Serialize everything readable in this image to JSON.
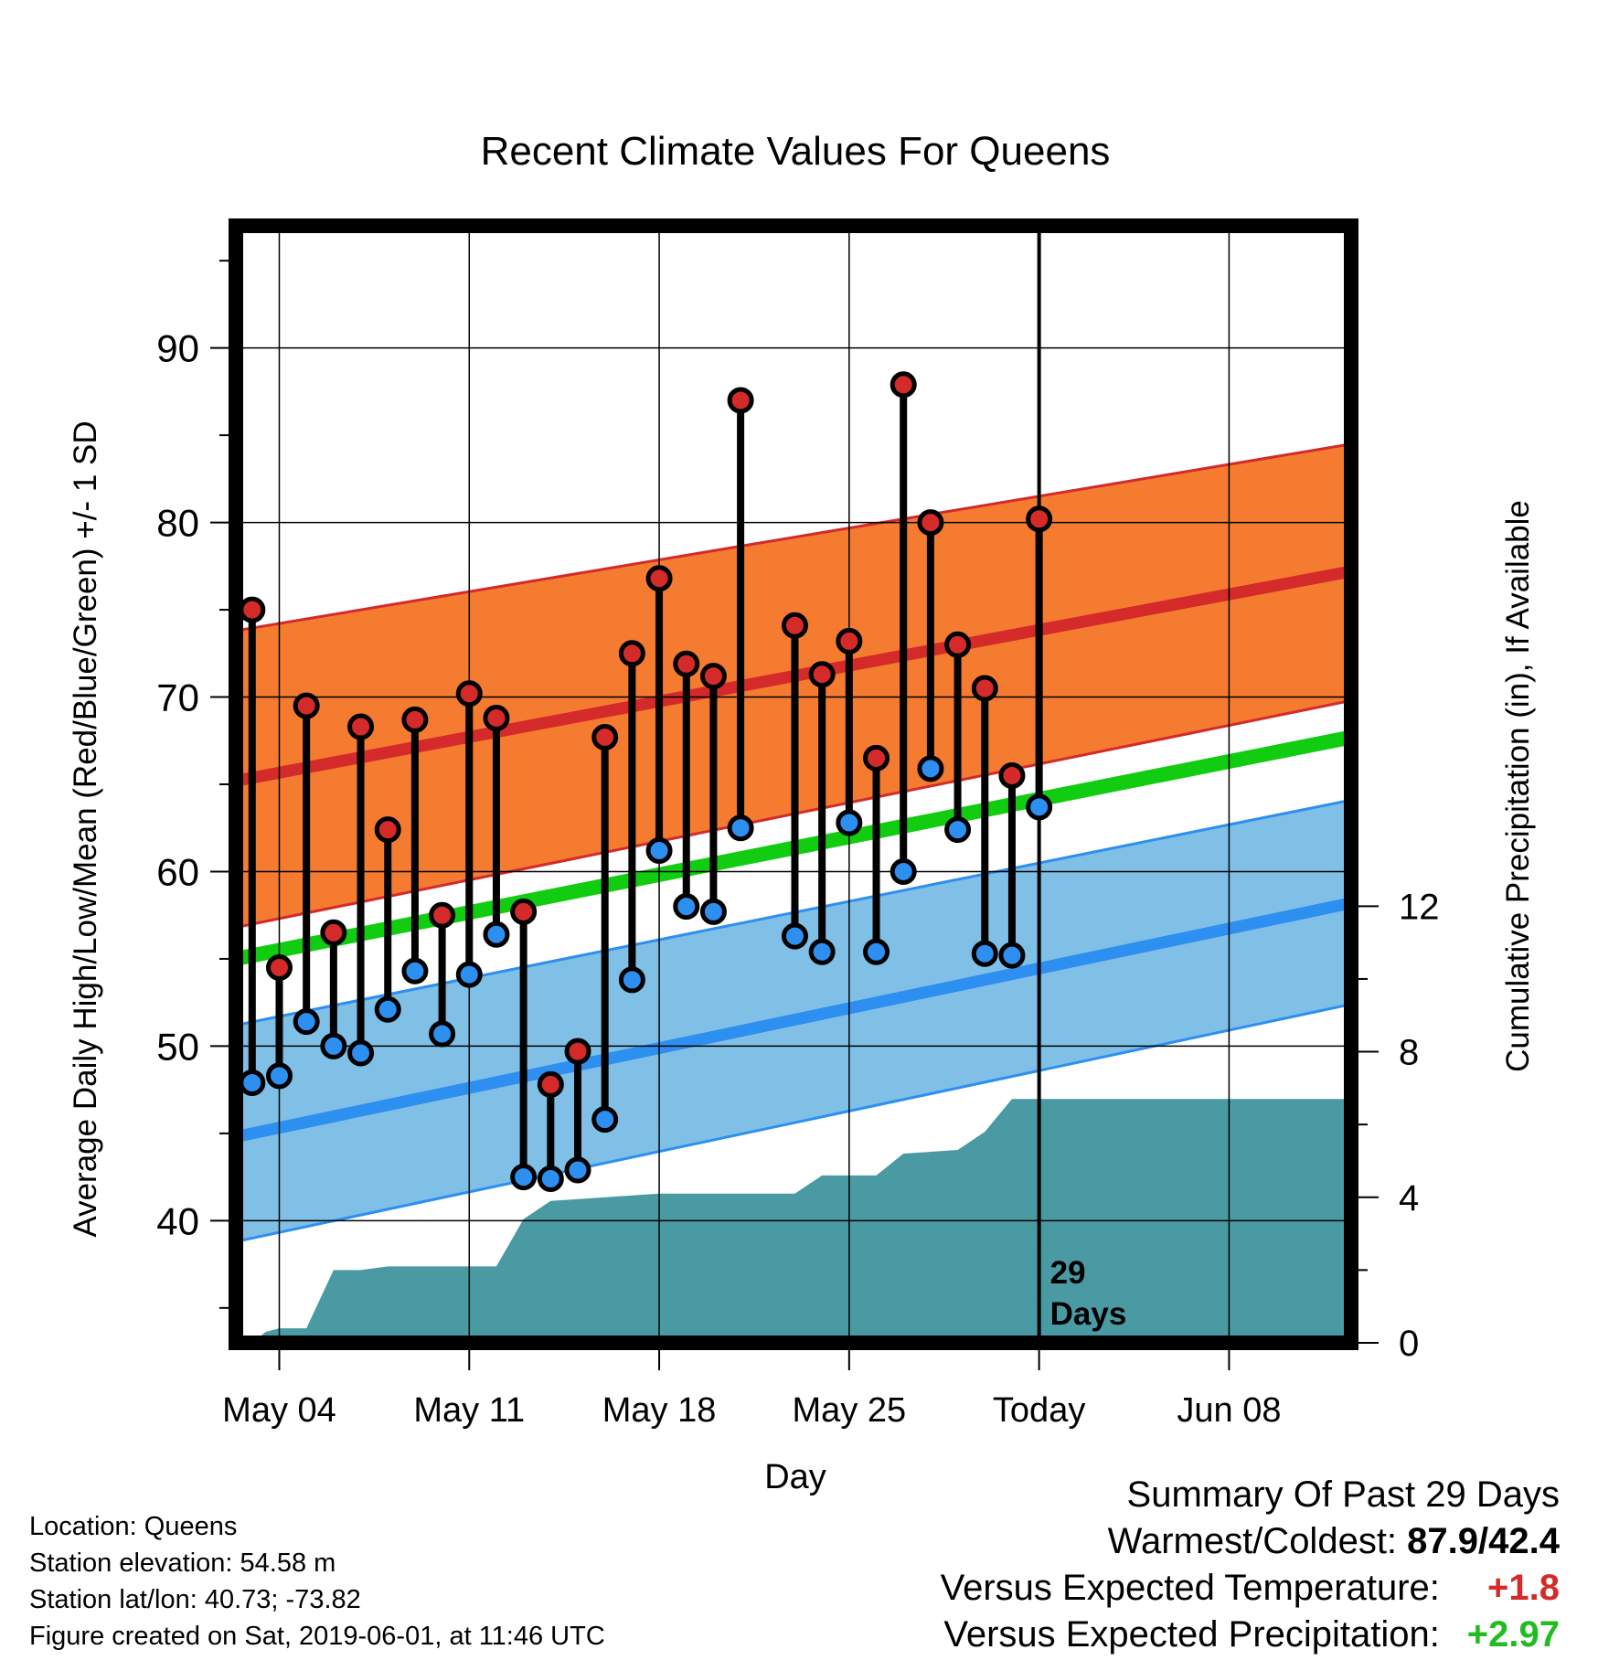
{
  "chart_data": {
    "type": "line",
    "title": "Recent Climate Values For Queens",
    "xlabel": "Day",
    "ylabel": "Average Daily High/Low/Mean (Red/Blue/Green) +/- 1 SD",
    "y2label": "Cumulative Precipitation (in), If Available",
    "ylim": [
      33,
      97
    ],
    "y2lim": [
      0,
      20
    ],
    "yticks": [
      40,
      50,
      60,
      70,
      80,
      90
    ],
    "y2ticks": [
      0,
      4,
      8,
      12
    ],
    "xlim": [
      2.4,
      43.5
    ],
    "xticks": [
      {
        "label": "May 04",
        "day": 4
      },
      {
        "label": "May 11",
        "day": 11
      },
      {
        "label": "May 18",
        "day": 18
      },
      {
        "label": "May 25",
        "day": 25
      },
      {
        "label": "Today",
        "day": 32
      },
      {
        "label": "Jun 08",
        "day": 39
      }
    ],
    "today_day": 32,
    "today_annotation": [
      "29",
      "Days"
    ],
    "observed": [
      {
        "day": 3,
        "high": 75.0,
        "low": 47.9
      },
      {
        "day": 4,
        "high": 54.5,
        "low": 48.3
      },
      {
        "day": 5,
        "high": 69.5,
        "low": 51.4
      },
      {
        "day": 6,
        "high": 56.5,
        "low": 50.0
      },
      {
        "day": 7,
        "high": 68.3,
        "low": 49.6
      },
      {
        "day": 8,
        "high": 62.4,
        "low": 52.1
      },
      {
        "day": 9,
        "high": 68.7,
        "low": 54.3
      },
      {
        "day": 10,
        "high": 57.5,
        "low": 50.7
      },
      {
        "day": 11,
        "high": 70.2,
        "low": 54.1
      },
      {
        "day": 12,
        "high": 68.8,
        "low": 56.4
      },
      {
        "day": 13,
        "high": 57.7,
        "low": 42.5
      },
      {
        "day": 14,
        "high": 47.8,
        "low": 42.4
      },
      {
        "day": 15,
        "high": 49.7,
        "low": 42.9
      },
      {
        "day": 16,
        "high": 67.7,
        "low": 45.8
      },
      {
        "day": 17,
        "high": 72.5,
        "low": 53.8
      },
      {
        "day": 18,
        "high": 76.8,
        "low": 61.2
      },
      {
        "day": 19,
        "high": 71.9,
        "low": 58.0
      },
      {
        "day": 20,
        "high": 71.2,
        "low": 57.7
      },
      {
        "day": 21,
        "high": 87.0,
        "low": 62.5
      },
      {
        "day": 23,
        "high": 74.1,
        "low": 56.3
      },
      {
        "day": 24,
        "high": 71.3,
        "low": 55.4
      },
      {
        "day": 25,
        "high": 73.2,
        "low": 62.8
      },
      {
        "day": 26,
        "high": 66.5,
        "low": 55.4
      },
      {
        "day": 27,
        "high": 87.9,
        "low": 60.0
      },
      {
        "day": 28,
        "high": 80.0,
        "low": 65.9
      },
      {
        "day": 29,
        "high": 73.0,
        "low": 62.4
      },
      {
        "day": 30,
        "high": 70.5,
        "low": 55.3
      },
      {
        "day": 31,
        "high": 65.5,
        "low": 55.2
      },
      {
        "day": 32,
        "high": 80.2,
        "low": 63.7
      }
    ],
    "normal_high": {
      "start": 65.2,
      "end": 77.2,
      "sd_upper_start": 73.8,
      "sd_upper_end": 84.5,
      "sd_lower_start": 56.8,
      "sd_lower_end": 69.8
    },
    "normal_low": {
      "start": 44.8,
      "end": 58.2,
      "sd_upper_start": 51.2,
      "sd_upper_end": 64.1,
      "sd_lower_start": 38.8,
      "sd_lower_end": 52.4
    },
    "normal_mean": {
      "start": 55.0,
      "end": 67.7
    },
    "precip_cumulative": [
      {
        "day": 3.0,
        "in": 0.0
      },
      {
        "day": 3.5,
        "in": 0.3
      },
      {
        "day": 4.0,
        "in": 0.4
      },
      {
        "day": 5.0,
        "in": 0.4
      },
      {
        "day": 6.0,
        "in": 2.0
      },
      {
        "day": 7.0,
        "in": 2.0
      },
      {
        "day": 8.0,
        "in": 2.1
      },
      {
        "day": 12.0,
        "in": 2.1
      },
      {
        "day": 13.0,
        "in": 3.4
      },
      {
        "day": 14.0,
        "in": 3.9
      },
      {
        "day": 16.0,
        "in": 4.0
      },
      {
        "day": 18.0,
        "in": 4.1
      },
      {
        "day": 23.0,
        "in": 4.1
      },
      {
        "day": 24.0,
        "in": 4.6
      },
      {
        "day": 26.0,
        "in": 4.6
      },
      {
        "day": 27.0,
        "in": 5.2
      },
      {
        "day": 29.0,
        "in": 5.3
      },
      {
        "day": 30.0,
        "in": 5.8
      },
      {
        "day": 31.0,
        "in": 6.7
      },
      {
        "day": 43.5,
        "in": 6.7
      }
    ],
    "colors": {
      "high_band": "#f47b30",
      "high_line": "#d42a2a",
      "low_band": "#80bfe6",
      "low_line": "#2d8fef",
      "mean_line": "#11cc11",
      "precip": "#4a9aa3",
      "high_marker": "#d42a2a",
      "low_marker": "#2d8fef"
    }
  },
  "footer": {
    "location": "Location: Queens",
    "elevation": "Station elevation: 54.58 m",
    "latlon": "Station lat/lon: 40.73; -73.82",
    "created": "Figure created on Sat, 2019-06-01, at 11:46 UTC"
  },
  "summary": {
    "heading": "Summary Of Past 29 Days",
    "warm_cold_label": "Warmest/Coldest:",
    "warm_cold_value": "87.9/42.4",
    "temp_label": "Versus Expected Temperature:",
    "temp_value": "+1.8",
    "precip_label": "Versus Expected Precipitation:",
    "precip_value": "+2.97"
  }
}
